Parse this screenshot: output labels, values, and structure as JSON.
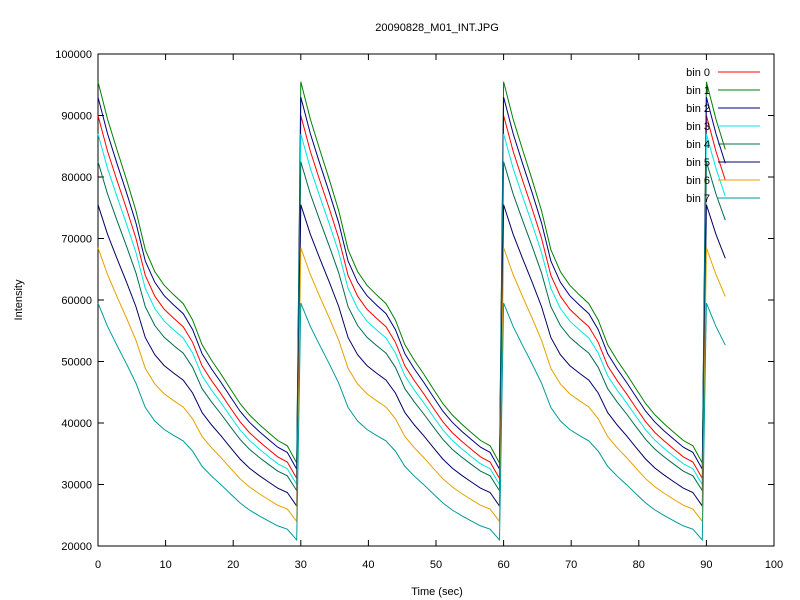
{
  "chart_data": {
    "type": "line",
    "title": "20090828_M01_INT.JPG",
    "xlabel": "Time (sec)",
    "ylabel": "Intensity",
    "xlim": [
      0,
      100
    ],
    "ylim": [
      20000,
      100000
    ],
    "x_ticks": [
      "0",
      "10",
      "20",
      "30",
      "40",
      "50",
      "60",
      "70",
      "80",
      "90",
      "100"
    ],
    "y_ticks": [
      "20000",
      "30000",
      "40000",
      "50000",
      "60000",
      "70000",
      "80000",
      "90000",
      "100000"
    ],
    "grid": false,
    "legend_position": "top-right",
    "x_period": 30,
    "x_end": 92.2,
    "shape": [
      1.0,
      0.902,
      0.822,
      0.744,
      0.662,
      0.559,
      0.502,
      0.466,
      0.441,
      0.418,
      0.375,
      0.31,
      0.269,
      0.233,
      0.194,
      0.156,
      0.126,
      0.102,
      0.08,
      0.059,
      0.045,
      0.0
    ],
    "series": [
      {
        "name": "bin 0",
        "color": "#ff0000",
        "peak": 90000,
        "trough": 31000
      },
      {
        "name": "bin 1",
        "color": "#008000",
        "peak": 95500,
        "trough": 33500
      },
      {
        "name": "bin 2",
        "color": "#000080",
        "peak": 93000,
        "trough": 32500
      },
      {
        "name": "bin 3",
        "color": "#00e5e5",
        "peak": 87000,
        "trough": 30000
      },
      {
        "name": "bin 4",
        "color": "#006b4c",
        "peak": 82500,
        "trough": 29000
      },
      {
        "name": "bin 5",
        "color": "#000066",
        "peak": 75500,
        "trough": 26500
      },
      {
        "name": "bin 6",
        "color": "#e5a000",
        "peak": 68500,
        "trough": 24000
      },
      {
        "name": "bin 7",
        "color": "#009a9a",
        "peak": 59500,
        "trough": 21000
      }
    ]
  }
}
